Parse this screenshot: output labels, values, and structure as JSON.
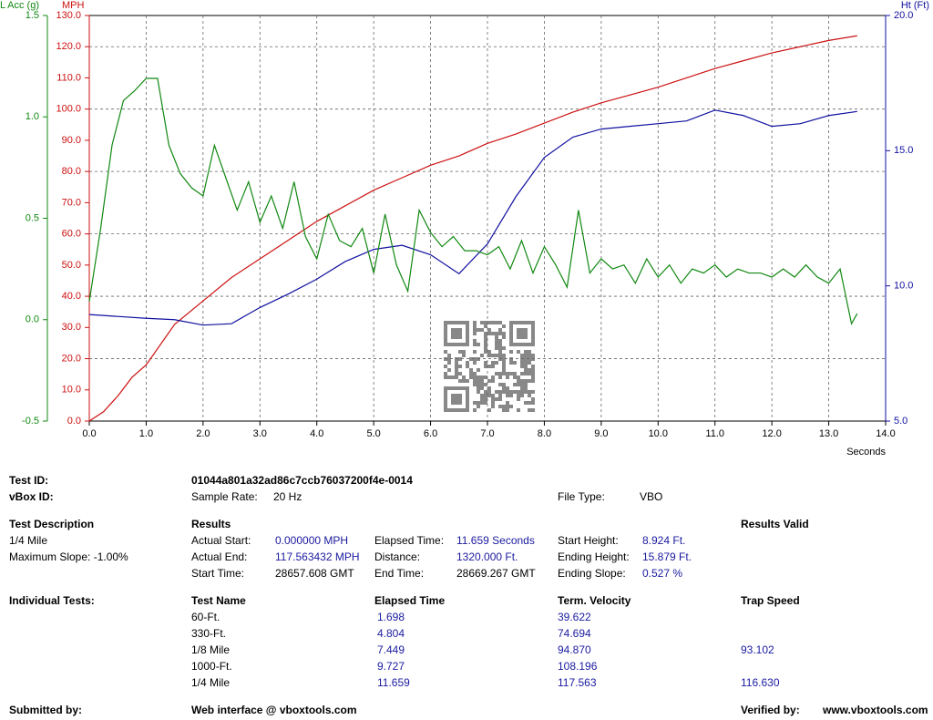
{
  "chart_data": {
    "type": "line",
    "x_label": "Seconds",
    "xlim": [
      0,
      14
    ],
    "xticks": [
      {
        "value": 0,
        "label": "0.0"
      },
      {
        "value": 1,
        "label": "1.0"
      },
      {
        "value": 2,
        "label": "2.0"
      },
      {
        "value": 3,
        "label": "3.0"
      },
      {
        "value": 4,
        "label": "4.0"
      },
      {
        "value": 5,
        "label": "5.0"
      },
      {
        "value": 6,
        "label": "6.0"
      },
      {
        "value": 7,
        "label": "7.0"
      },
      {
        "value": 8,
        "label": "8.0"
      },
      {
        "value": 9,
        "label": "9.0"
      },
      {
        "value": 10,
        "label": "10.0"
      },
      {
        "value": 11,
        "label": "11.0"
      },
      {
        "value": 12,
        "label": "12.0"
      },
      {
        "value": 13,
        "label": "13.0"
      },
      {
        "value": 14,
        "label": "14.0"
      }
    ],
    "y_label": "MPH",
    "ylim": [
      0,
      130
    ],
    "yticks": [
      {
        "value": 0,
        "label": "0.0"
      },
      {
        "value": 10,
        "label": "10.0"
      },
      {
        "value": 20,
        "label": "20.0"
      },
      {
        "value": 30,
        "label": "30.0"
      },
      {
        "value": 40,
        "label": "40.0"
      },
      {
        "value": 50,
        "label": "50.0"
      },
      {
        "value": 60,
        "label": "60.0"
      },
      {
        "value": 70,
        "label": "70.0"
      },
      {
        "value": 80,
        "label": "80.0"
      },
      {
        "value": 90,
        "label": "90.0"
      },
      {
        "value": 100,
        "label": "100.0"
      },
      {
        "value": 110,
        "label": "110.0"
      },
      {
        "value": 120,
        "label": "120.0"
      },
      {
        "value": 130,
        "label": "130.0"
      }
    ],
    "y2_label": "Ht (Ft)",
    "y2lim": [
      5,
      20
    ],
    "y2ticks": [
      {
        "value": 5,
        "label": "5.0"
      },
      {
        "value": 10,
        "label": "10.0"
      },
      {
        "value": 15,
        "label": "15.0"
      },
      {
        "value": 20,
        "label": "20.0"
      }
    ],
    "y3_label": "L Acc (g)",
    "y3lim": [
      -0.5,
      1.5
    ],
    "y3ticks": [
      -0.5,
      {
        "value": 0,
        "label": "0.0"
      },
      0.5,
      {
        "value": 1,
        "label": "1.0"
      },
      1.5
    ],
    "grid": true,
    "series": [
      {
        "name": "MPH",
        "axis": "y",
        "color": "#cc1111",
        "x": [
          0,
          0.25,
          0.5,
          0.75,
          1,
          1.5,
          2,
          2.5,
          3,
          3.5,
          4,
          4.5,
          5,
          5.5,
          6,
          6.5,
          7,
          7.5,
          8,
          8.5,
          9,
          9.5,
          10,
          10.5,
          11,
          11.5,
          12,
          12.5,
          13,
          13.5
        ],
        "values": [
          0,
          3,
          8,
          14,
          18,
          31,
          38.5,
          46,
          52,
          58,
          64,
          69,
          74,
          78,
          82,
          85,
          89,
          92,
          95.5,
          99,
          102,
          104.5,
          107,
          110,
          113,
          115.5,
          118,
          120,
          122,
          123.5
        ]
      },
      {
        "name": "Ht (Ft)",
        "axis": "y2",
        "color": "#1010a0",
        "x": [
          0,
          1,
          1.5,
          2,
          2.5,
          3,
          3.5,
          4,
          4.5,
          5,
          5.5,
          6,
          6.5,
          7,
          7.5,
          8,
          8.5,
          9,
          9.5,
          10,
          10.5,
          11,
          11.5,
          12,
          12.5,
          13,
          13.5
        ],
        "values": [
          8.94,
          8.8,
          8.75,
          8.55,
          8.6,
          9.2,
          9.7,
          10.25,
          10.9,
          11.35,
          11.5,
          11.15,
          10.45,
          11.55,
          13.3,
          14.75,
          15.5,
          15.8,
          15.9,
          16.0,
          16.1,
          16.5,
          16.3,
          15.9,
          16.0,
          16.3,
          16.45
        ]
      },
      {
        "name": "L Acc (g)",
        "axis": "y3",
        "color": "#118811",
        "x": [
          0,
          0.2,
          0.4,
          0.6,
          0.8,
          1,
          1.2,
          1.4,
          1.6,
          1.8,
          2,
          2.2,
          2.4,
          2.6,
          2.8,
          3,
          3.2,
          3.4,
          3.6,
          3.8,
          4,
          4.2,
          4.4,
          4.6,
          4.8,
          5,
          5.2,
          5.4,
          5.6,
          5.8,
          6,
          6.2,
          6.4,
          6.6,
          6.8,
          7,
          7.2,
          7.4,
          7.6,
          7.8,
          8,
          8.2,
          8.4,
          8.6,
          8.8,
          9,
          9.2,
          9.4,
          9.6,
          9.8,
          10,
          10.2,
          10.4,
          10.6,
          10.8,
          11,
          11.2,
          11.4,
          11.6,
          11.8,
          12,
          12.2,
          12.4,
          12.6,
          12.8,
          13,
          13.2,
          13.4,
          13.5
        ],
        "values": [
          0.09,
          0.45,
          0.86,
          1.08,
          1.13,
          1.19,
          1.19,
          0.86,
          0.72,
          0.65,
          0.61,
          0.86,
          0.7,
          0.54,
          0.68,
          0.48,
          0.61,
          0.45,
          0.68,
          0.41,
          0.3,
          0.52,
          0.39,
          0.36,
          0.45,
          0.23,
          0.52,
          0.27,
          0.14,
          0.54,
          0.43,
          0.36,
          0.41,
          0.34,
          0.34,
          0.32,
          0.36,
          0.25,
          0.39,
          0.23,
          0.36,
          0.27,
          0.16,
          0.54,
          0.23,
          0.3,
          0.25,
          0.27,
          0.18,
          0.3,
          0.21,
          0.27,
          0.18,
          0.25,
          0.23,
          0.27,
          0.21,
          0.25,
          0.23,
          0.23,
          0.21,
          0.25,
          0.21,
          0.27,
          0.21,
          0.18,
          0.25,
          -0.02,
          0.03
        ]
      }
    ]
  },
  "report": {
    "test_id": {
      "label": "Test ID:",
      "value": "01044a801a32ad86c7ccb76037200f4e-0014"
    },
    "vbox_id": {
      "label": "vBox ID:"
    },
    "sample_rate": {
      "label": "Sample Rate:",
      "value": "20 Hz"
    },
    "file_type": {
      "label": "File Type:",
      "value": "VBO"
    },
    "test_description": {
      "heading": "Test Description",
      "lines": [
        "1/4 Mile",
        "Maximum Slope:  -1.00%"
      ]
    },
    "results": {
      "heading": "Results",
      "status": "Results Valid",
      "fields": [
        [
          "Actual Start:",
          "0.000000 MPH"
        ],
        [
          "Elapsed Time:",
          "11.659 Seconds"
        ],
        [
          "Start Height:",
          "8.924 Ft."
        ],
        [
          "Actual End:",
          "117.563432 MPH"
        ],
        [
          "Distance:",
          "1320.000 Ft."
        ],
        [
          "Ending Height:",
          "15.879 Ft."
        ],
        [
          "Start Time:",
          "28657.608 GMT"
        ],
        [
          "End Time:",
          "28669.267 GMT"
        ],
        [
          "Ending Slope:",
          "0.527 %"
        ]
      ]
    },
    "individual_tests": {
      "label": "Individual Tests:",
      "headers": [
        "Test Name",
        "Elapsed Time",
        "Term. Velocity",
        "Trap Speed"
      ],
      "rows": [
        [
          "60-Ft.",
          "1.698",
          "39.622",
          null
        ],
        [
          "330-Ft.",
          "4.804",
          "74.694",
          null
        ],
        [
          "1/8 Mile",
          "7.449",
          "94.870",
          "93.102"
        ],
        [
          "1000-Ft.",
          "9.727",
          "108.196",
          null
        ],
        [
          "1/4 Mile",
          "11.659",
          "117.563",
          "116.630"
        ]
      ]
    },
    "footer": {
      "submitted_label": "Submitted by:",
      "submitted": "Web interface @ vboxtools.com",
      "verified_label": "Verified by:",
      "verified": "www.vboxtools.com"
    }
  }
}
